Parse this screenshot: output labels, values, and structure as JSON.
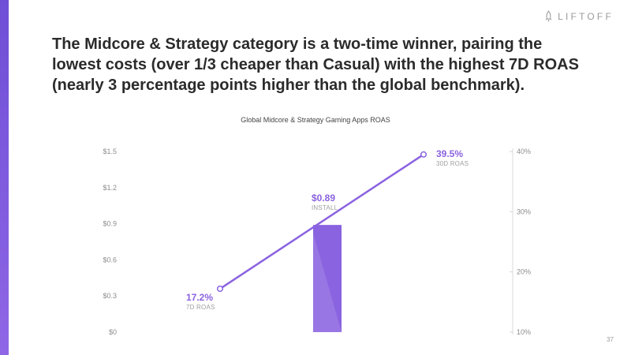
{
  "brand": {
    "logo_text": "LIFTOFF",
    "logo_icon": "rocket-icon",
    "accent_color": "#7b59de"
  },
  "slide": {
    "headline": "The Midcore & Strategy category is a two-time winner, pairing the\nlowest costs  (over 1/3 cheaper than Casual) with the highest 7D ROAS\n(nearly 3 percentage points higher than the global benchmark).",
    "page_number": "37"
  },
  "chart_data": {
    "type": "bar+line",
    "title": "Global Midcore & Strategy Gaming Apps ROAS",
    "left_axis": {
      "ylim": [
        0,
        1.5
      ],
      "ticks": [
        0,
        0.3,
        0.6,
        0.9,
        1.2,
        1.5
      ],
      "tick_labels": [
        "$0",
        "$0.3",
        "$0.6",
        "$0.9",
        "$1.2",
        "$1.5"
      ]
    },
    "right_axis": {
      "ylim": [
        10,
        40
      ],
      "ticks": [
        10,
        20,
        30,
        40
      ],
      "tick_labels": [
        "10%",
        "20%",
        "30%",
        "40%"
      ]
    },
    "bar": {
      "value": 0.89,
      "label": "$0.89",
      "sublabel": "INSTALL",
      "color": "#8a63e0"
    },
    "line": {
      "color": "#8a63e0",
      "points": [
        {
          "value": 17.2,
          "label": "17.2%",
          "sublabel": "7D ROAS"
        },
        {
          "value": 39.5,
          "label": "39.5%",
          "sublabel": "30D ROAS"
        }
      ]
    },
    "grid": false
  }
}
